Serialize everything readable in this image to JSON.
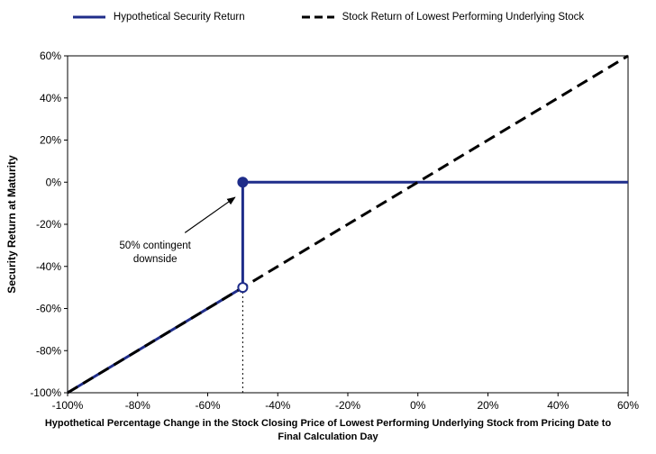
{
  "chart_data": {
    "type": "line",
    "title": "",
    "xlabel": "Hypothetical Percentage Change in the Stock Closing Price of Lowest Performing Underlying Stock from Pricing Date to Final Calculation Day",
    "ylabel": "Security Return at Maturity",
    "xlim": [
      -100,
      60
    ],
    "ylim": [
      -100,
      60
    ],
    "x_ticks": [
      -100,
      -80,
      -60,
      -40,
      -20,
      0,
      20,
      40,
      60
    ],
    "y_ticks": [
      -100,
      -80,
      -60,
      -40,
      -20,
      0,
      20,
      40,
      60
    ],
    "x_tick_labels": [
      "-100%",
      "-80%",
      "-60%",
      "-40%",
      "-20%",
      "0%",
      "20%",
      "40%",
      "60%"
    ],
    "y_tick_labels": [
      "-100%",
      "-80%",
      "-60%",
      "-40%",
      "-20%",
      "0%",
      "20%",
      "40%",
      "60%"
    ],
    "grid": false,
    "legend_position": "top",
    "colors": {
      "security": "#1f2d8a",
      "stock": "#000000",
      "axis": "#000000"
    },
    "series": [
      {
        "name": "Hypothetical Security Return",
        "color": "#1f2d8a",
        "style": "solid",
        "width": 3,
        "points": [
          [
            -100,
            -100
          ],
          [
            -50,
            -50
          ],
          [
            -50,
            0
          ],
          [
            60,
            0
          ]
        ],
        "markers": [
          {
            "x": -50,
            "y": -50,
            "type": "open-circle"
          },
          {
            "x": -50,
            "y": 0,
            "type": "filled-circle"
          }
        ]
      },
      {
        "name": "Stock Return of Lowest Performing Underlying Stock",
        "color": "#000000",
        "style": "dashed",
        "width": 3,
        "points": [
          [
            -100,
            -100
          ],
          [
            60,
            60
          ]
        ],
        "markers": []
      }
    ],
    "reference_lines": [
      {
        "type": "vertical-dotted",
        "x": -50,
        "y_from": -100,
        "y_to": -50
      }
    ],
    "annotations": [
      {
        "text": "50% contingent downside",
        "lines": [
          "50% contingent",
          "downside"
        ],
        "text_x": -75,
        "text_y": -31.5,
        "arrow_from": [
          -66.5,
          -24
        ],
        "arrow_to": [
          -52.2,
          -7.2
        ]
      }
    ]
  }
}
